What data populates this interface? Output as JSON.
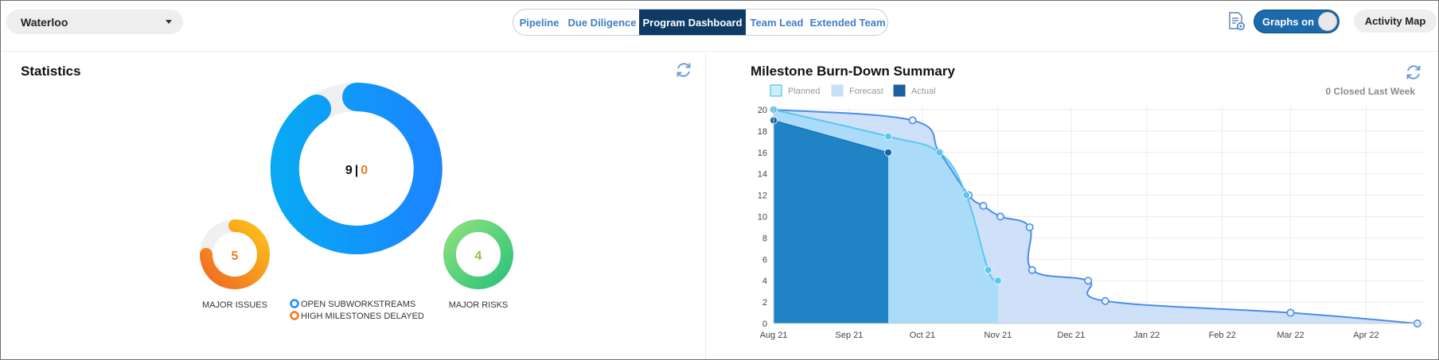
{
  "header": {
    "site_selector": {
      "value": "Waterloo"
    },
    "tabs": [
      {
        "label": "Pipeline",
        "active": false
      },
      {
        "label": "Due Diligence",
        "active": false
      },
      {
        "label": "Program Dashboard",
        "active": true
      },
      {
        "label": "Team Lead",
        "active": false
      },
      {
        "label": "Extended Team",
        "active": false
      }
    ],
    "report_icon": "document-gear-icon",
    "graphs_toggle": {
      "label": "Graphs on",
      "on": true
    },
    "activity_map_label": "Activity Map"
  },
  "statistics": {
    "title": "Statistics",
    "refresh_icon": "refresh-icon",
    "main_ring": {
      "open_count": "9",
      "separator": "|",
      "delayed_count": "0"
    },
    "major_issues": {
      "value": "5",
      "label": "MAJOR ISSUES"
    },
    "major_risks": {
      "value": "4",
      "label": "MAJOR RISKS"
    },
    "legend": [
      {
        "label": "OPEN SUBWORKSTREAMS",
        "color": "#1e90ff"
      },
      {
        "label": "HIGH MILESTONES DELAYED",
        "color": "#f47c20"
      }
    ],
    "colors": {
      "open": "#1a8cff",
      "delayed": "#f47c20",
      "issues": "#f6a01c",
      "risks": "#3ecf6e",
      "risk_text": "#8cc63f",
      "track": "#f0f0f0"
    }
  },
  "burndown": {
    "title": "Milestone Burn-Down Summary",
    "closed_last_week": "0 Closed Last Week",
    "refresh_icon": "refresh-icon"
  },
  "chart_data": {
    "type": "area",
    "title": "Milestone Burn-Down Summary",
    "x_tick_labels": [
      "Aug 21",
      "Sep 21",
      "Oct 21",
      "Nov 21",
      "Dec 21",
      "Jan 22",
      "Feb 22",
      "Mar 22",
      "Apr 22"
    ],
    "x_tick_dates": [
      "2021-08-01",
      "2021-09-01",
      "2021-10-01",
      "2021-11-01",
      "2021-12-01",
      "2022-01-01",
      "2022-02-01",
      "2022-03-01",
      "2022-04-01"
    ],
    "xlim": [
      "2021-08-01",
      "2022-04-25"
    ],
    "ylim": [
      0,
      20
    ],
    "y_ticks": [
      0,
      2,
      4,
      6,
      8,
      10,
      12,
      14,
      16,
      18,
      20
    ],
    "grid": true,
    "legend_position": "top-left",
    "series": [
      {
        "name": "Planned",
        "color": "#5bc7ef",
        "fill": "#a6dcf8",
        "points": [
          [
            "2021-08-01",
            20
          ],
          [
            "2021-09-17",
            17.5
          ],
          [
            "2021-10-08",
            16
          ],
          [
            "2021-10-19",
            12
          ],
          [
            "2021-10-28",
            5
          ],
          [
            "2021-11-01",
            4
          ]
        ]
      },
      {
        "name": "Forecast",
        "color": "#4a8ee8",
        "fill": "#c9def8",
        "points": [
          [
            "2021-08-01",
            20
          ],
          [
            "2021-09-27",
            19
          ],
          [
            "2021-10-08",
            16
          ],
          [
            "2021-10-20",
            12
          ],
          [
            "2021-10-26",
            11
          ],
          [
            "2021-11-02",
            10
          ],
          [
            "2021-11-14",
            9
          ],
          [
            "2021-11-15",
            5
          ],
          [
            "2021-12-08",
            4
          ],
          [
            "2021-12-15",
            2.1
          ],
          [
            "2022-03-01",
            1
          ],
          [
            "2022-04-22",
            0
          ]
        ]
      },
      {
        "name": "Actual",
        "color": "#1565a8",
        "fill": "#1f83c6",
        "points": [
          [
            "2021-08-01",
            19
          ],
          [
            "2021-09-17",
            16
          ]
        ]
      }
    ]
  }
}
